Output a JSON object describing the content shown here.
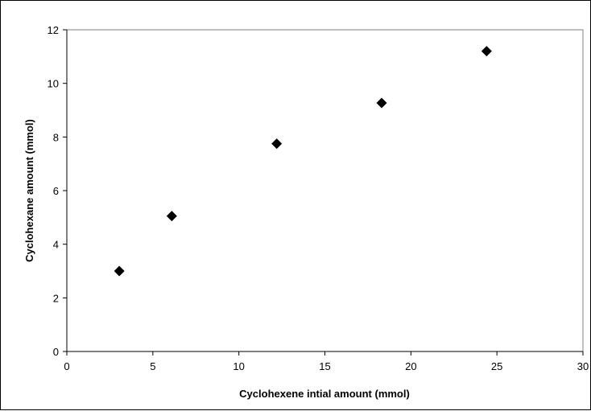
{
  "chart_data": {
    "type": "scatter",
    "title": "",
    "xlabel": "Cyclohexene intial amount (mmol)",
    "ylabel": "Cyclohexane amount (mmol)",
    "xlim": [
      0,
      30
    ],
    "ylim": [
      0,
      12
    ],
    "xticks": [
      0,
      5,
      10,
      15,
      20,
      25,
      30
    ],
    "yticks": [
      0,
      2,
      4,
      6,
      8,
      10,
      12
    ],
    "grid": false,
    "legend": "none",
    "marker": "diamond",
    "marker_color": "#000000",
    "series": [
      {
        "points": [
          {
            "x": 3.05,
            "y": 3.0
          },
          {
            "x": 6.1,
            "y": 5.05
          },
          {
            "x": 12.2,
            "y": 7.75
          },
          {
            "x": 18.3,
            "y": 9.27
          },
          {
            "x": 24.4,
            "y": 11.2
          }
        ]
      }
    ]
  }
}
